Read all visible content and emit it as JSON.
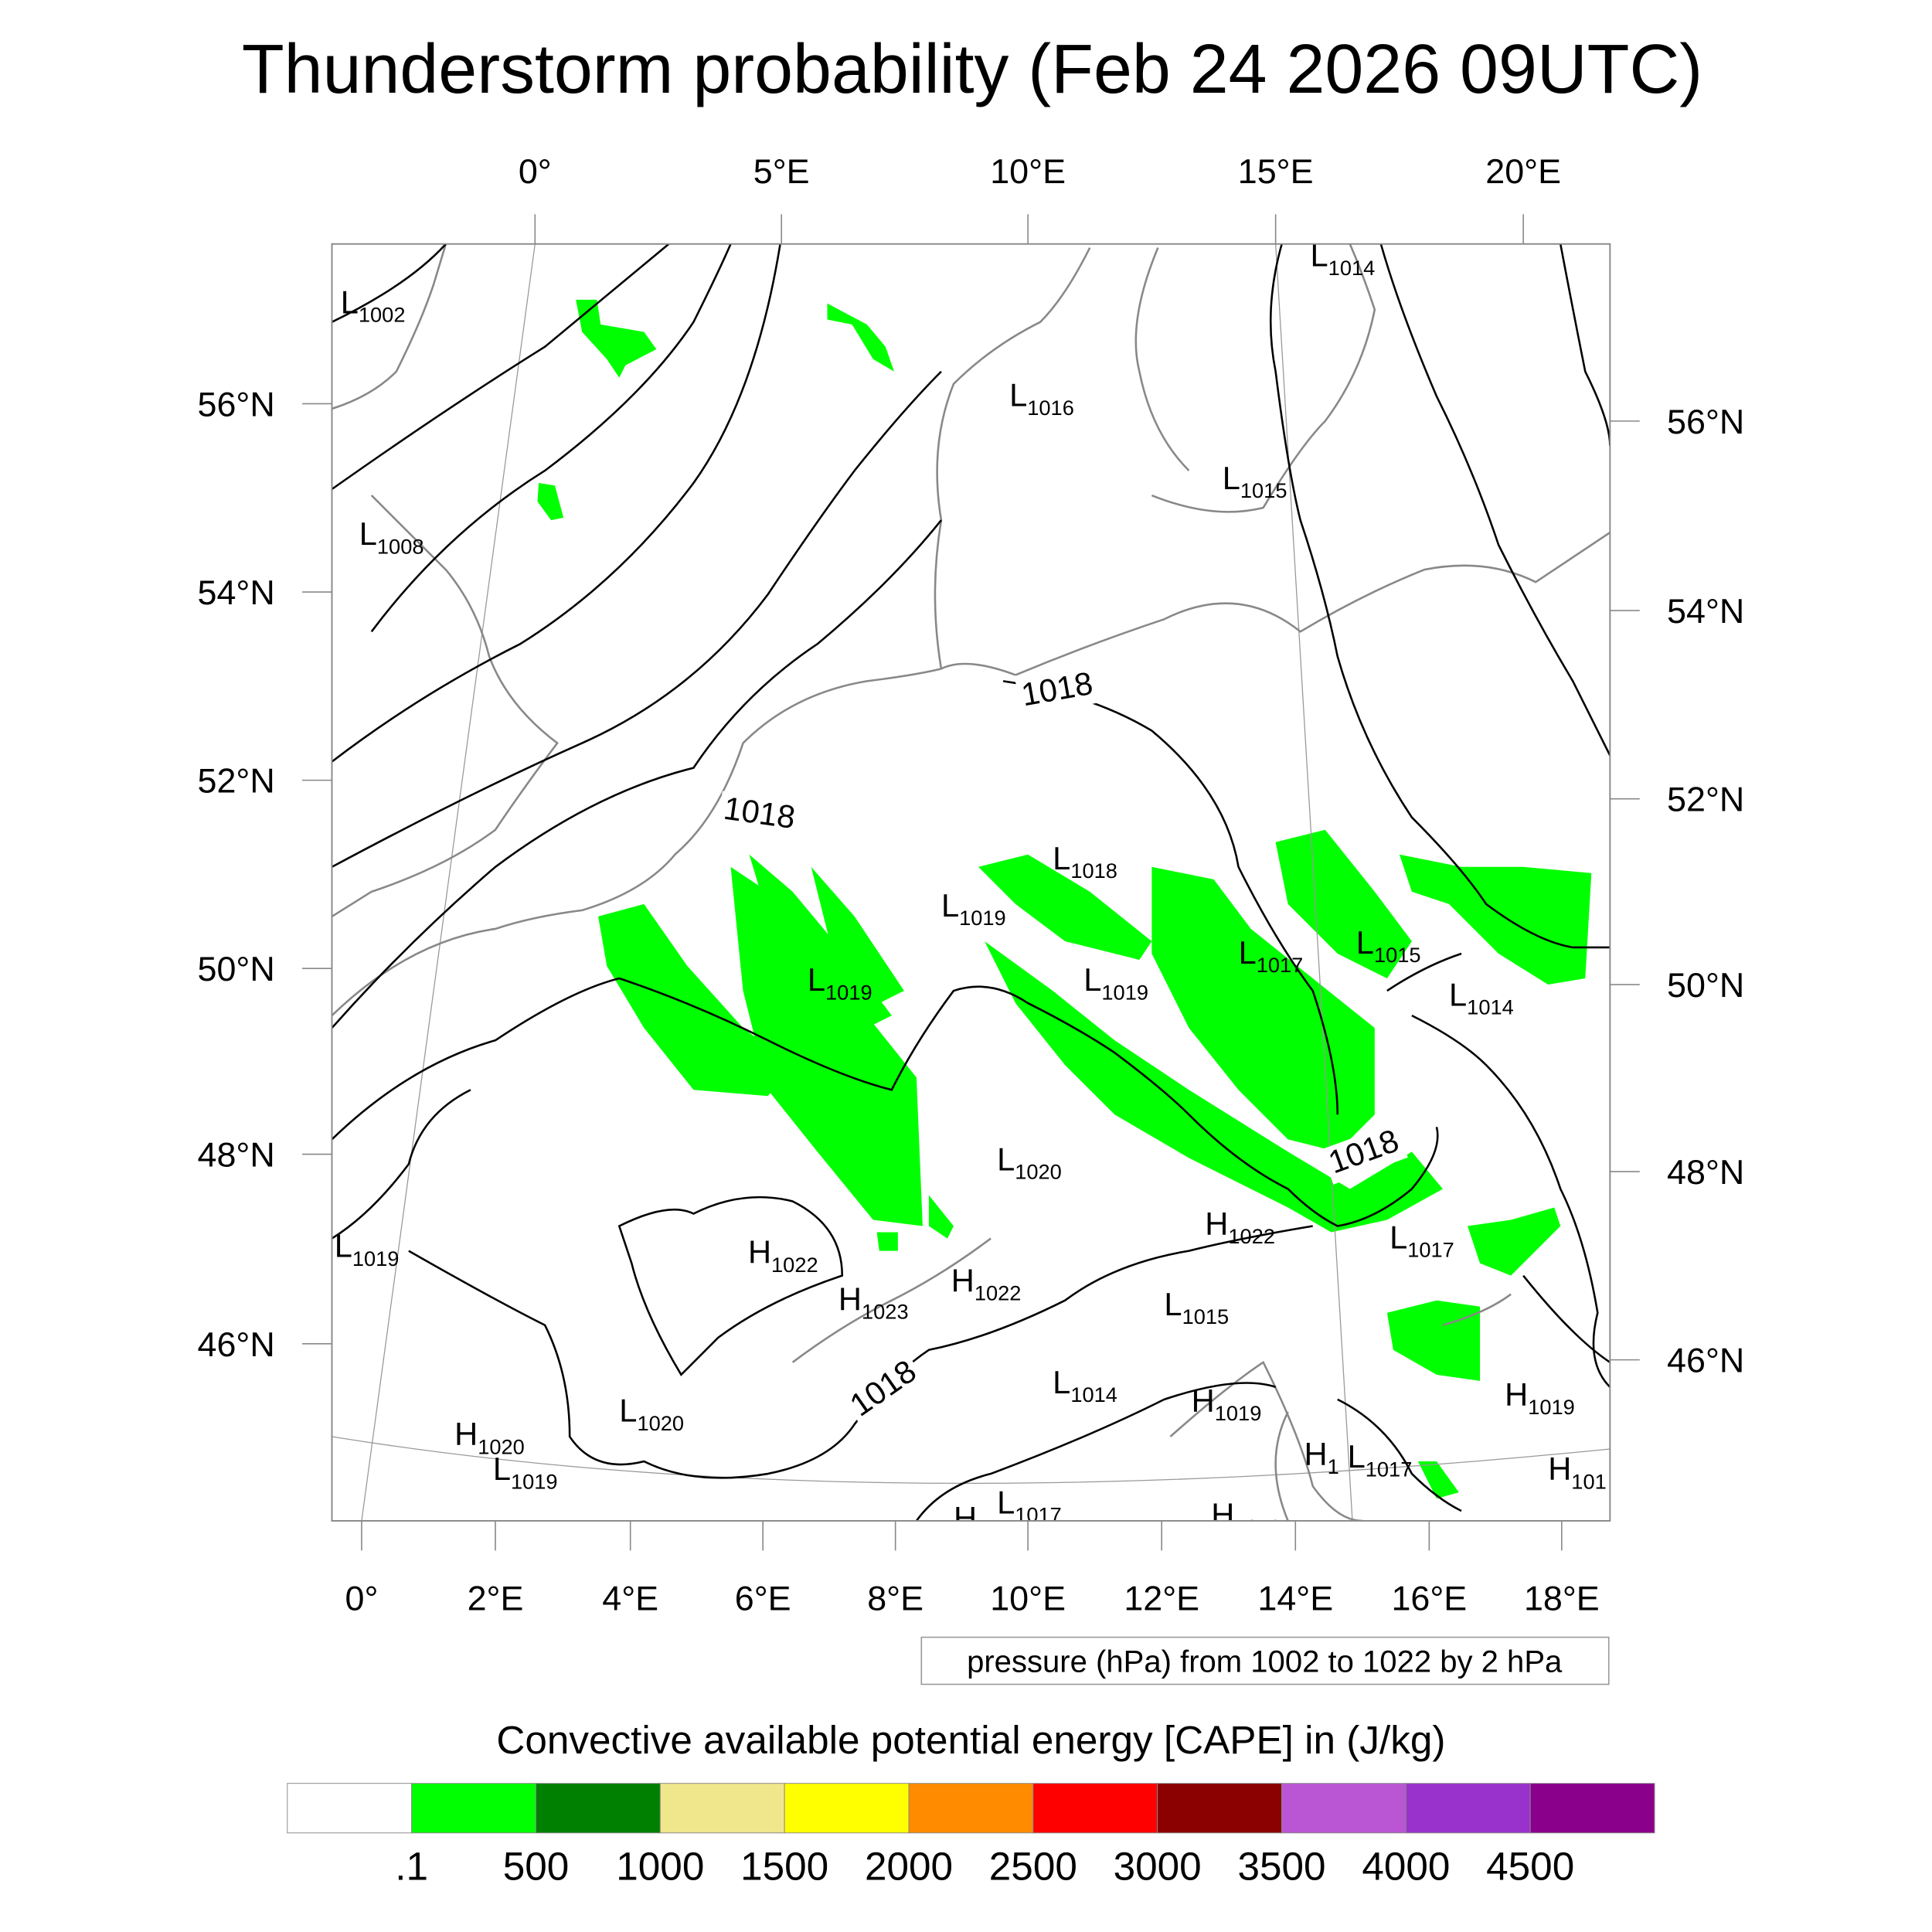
{
  "title": "Thunderstorm probability (Feb 24 2026 09UTC)",
  "axes": {
    "top_lon": [
      "0°",
      "5°E",
      "10°E",
      "15°E",
      "20°E"
    ],
    "bottom_lon": [
      "0°",
      "2°E",
      "4°E",
      "6°E",
      "8°E",
      "10°E",
      "12°E",
      "14°E",
      "16°E",
      "18°E"
    ],
    "left_lat": [
      "56°N",
      "54°N",
      "52°N",
      "50°N",
      "48°N",
      "46°N"
    ],
    "right_lat": [
      "56°N",
      "54°N",
      "52°N",
      "50°N",
      "48°N",
      "46°N"
    ]
  },
  "pressure_centers": [
    {
      "t": "L",
      "v": "1002"
    },
    {
      "t": "L",
      "v": "1016"
    },
    {
      "t": "L",
      "v": "1015"
    },
    {
      "t": "L",
      "v": "1008"
    },
    {
      "t": "L",
      "v": "1014"
    },
    {
      "t": "L",
      "v": "1018"
    },
    {
      "t": "L",
      "v": "1019"
    },
    {
      "t": "L",
      "v": "1017"
    },
    {
      "t": "L",
      "v": "1015"
    },
    {
      "t": "L",
      "v": "1019"
    },
    {
      "t": "L",
      "v": "1019"
    },
    {
      "t": "L",
      "v": "1014"
    },
    {
      "t": "L",
      "v": "1020"
    },
    {
      "t": "H",
      "v": "1022"
    },
    {
      "t": "L",
      "v": "1017"
    },
    {
      "t": "L",
      "v": "1019"
    },
    {
      "t": "H",
      "v": "1022"
    },
    {
      "t": "H",
      "v": "1022"
    },
    {
      "t": "H",
      "v": "1023"
    },
    {
      "t": "L",
      "v": "1015"
    },
    {
      "t": "L",
      "v": "1014"
    },
    {
      "t": "H",
      "v": "1019"
    },
    {
      "t": "H",
      "v": "1019"
    },
    {
      "t": "L",
      "v": "1020"
    },
    {
      "t": "H",
      "v": "1020"
    },
    {
      "t": "L",
      "v": "1019"
    },
    {
      "t": "H",
      "v": "1"
    },
    {
      "t": "L",
      "v": "1017"
    },
    {
      "t": "H",
      "v": "101"
    },
    {
      "t": "H",
      "v": ""
    },
    {
      "t": "L",
      "v": "1017"
    },
    {
      "t": "H",
      "v": "1019"
    }
  ],
  "contour_labels": [
    "1018",
    "1018",
    "1018",
    "1018"
  ],
  "pressure_legend": "pressure (hPa) from 1002 to 1022 by 2 hPa",
  "colorbar": {
    "title": "Convective available potential energy [CAPE] in (J/kg)",
    "colors": [
      "#ffffff",
      "#00ff00",
      "#008000",
      "#f0e68c",
      "#ffff00",
      "#ff8c00",
      "#ff0000",
      "#8b0000",
      "#ba55d3",
      "#9932cc",
      "#8b008b"
    ],
    "labels": [
      ".1",
      "500",
      "1000",
      "1500",
      "2000",
      "2500",
      "3000",
      "3500",
      "4000",
      "4500"
    ]
  }
}
